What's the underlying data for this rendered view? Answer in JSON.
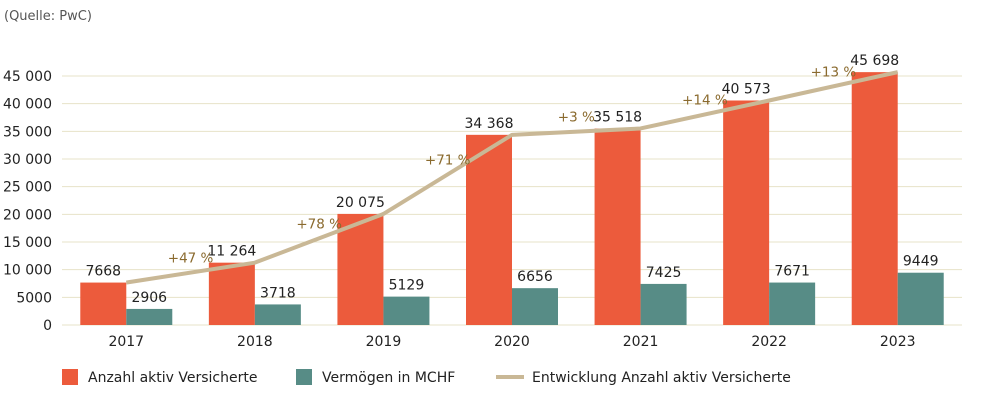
{
  "source_note": "(Quelle: PwC)",
  "chart_data": {
    "type": "bar",
    "categories": [
      "2017",
      "2018",
      "2019",
      "2020",
      "2021",
      "2022",
      "2023"
    ],
    "series": [
      {
        "name": "Anzahl aktiv Versicherte",
        "color": "#ec5b3c",
        "values": [
          7668,
          11264,
          20075,
          34368,
          35518,
          40573,
          45698
        ],
        "labels": [
          "7668",
          "11 264",
          "20 075",
          "34 368",
          "35 518",
          "40 573",
          "45 698"
        ]
      },
      {
        "name": "Vermögen in MCHF",
        "color": "#578c86",
        "values": [
          2906,
          3718,
          5129,
          6656,
          7425,
          7671,
          9449
        ],
        "labels": [
          "2906",
          "3718",
          "5129",
          "6656",
          "7425",
          "7671",
          "9449"
        ]
      }
    ],
    "line": {
      "name": "Entwicklung Anzahl aktiv Versicherte",
      "color": "#c9b896",
      "values": [
        7668,
        11264,
        20075,
        34368,
        35518,
        40573,
        45698
      ],
      "growth_labels": [
        "+47 %",
        "+78 %",
        "+71 %",
        "+3 %",
        "+14 %",
        "+13 %"
      ]
    },
    "ylim": [
      0,
      45000
    ],
    "yticks": [
      0,
      5000,
      10000,
      15000,
      20000,
      25000,
      30000,
      35000,
      40000,
      45000
    ],
    "ytick_labels": [
      "0",
      "5000",
      "10 000",
      "15 000",
      "20 000",
      "25 000",
      "30 000",
      "35 000",
      "40 000",
      "45 000"
    ],
    "grid": true,
    "legend_position": "bottom-left"
  }
}
